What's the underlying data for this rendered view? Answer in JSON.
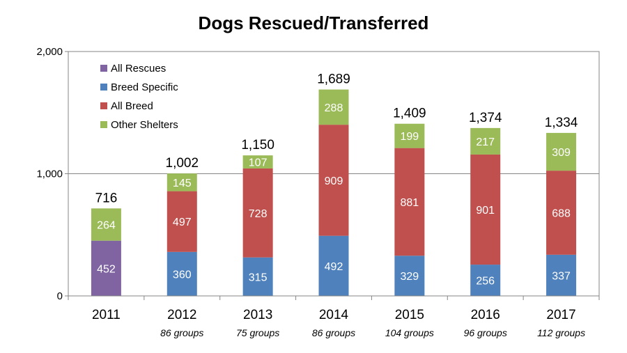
{
  "chart_data": {
    "type": "bar",
    "stacked": true,
    "title": "Dogs Rescued/Transferred",
    "categories": [
      "2011",
      "2012",
      "2013",
      "2014",
      "2015",
      "2016",
      "2017"
    ],
    "category_sublabels": [
      "",
      "86 groups",
      "75 groups",
      "86 groups",
      "104 groups",
      "96 groups",
      "112 groups"
    ],
    "series": [
      {
        "name": "All Rescues",
        "color": "#8064a2",
        "values": [
          452,
          0,
          0,
          0,
          0,
          0,
          0
        ]
      },
      {
        "name": "Breed Specific",
        "color": "#4f81bd",
        "values": [
          0,
          360,
          315,
          492,
          329,
          256,
          337
        ]
      },
      {
        "name": "All Breed",
        "color": "#c0504d",
        "values": [
          0,
          497,
          728,
          909,
          881,
          901,
          688
        ]
      },
      {
        "name": "Other Shelters",
        "color": "#9bbb59",
        "values": [
          264,
          145,
          107,
          288,
          199,
          217,
          309
        ]
      }
    ],
    "totals": [
      "716",
      "1,002",
      "1,150",
      "1,689",
      "1,409",
      "1,374",
      "1,334"
    ],
    "ylim": [
      0,
      2000
    ],
    "yticks": [
      0,
      1000,
      2000
    ],
    "ytick_labels": [
      "0",
      "1,000",
      "2,000"
    ],
    "grid": true,
    "legend_position": "top-left"
  }
}
